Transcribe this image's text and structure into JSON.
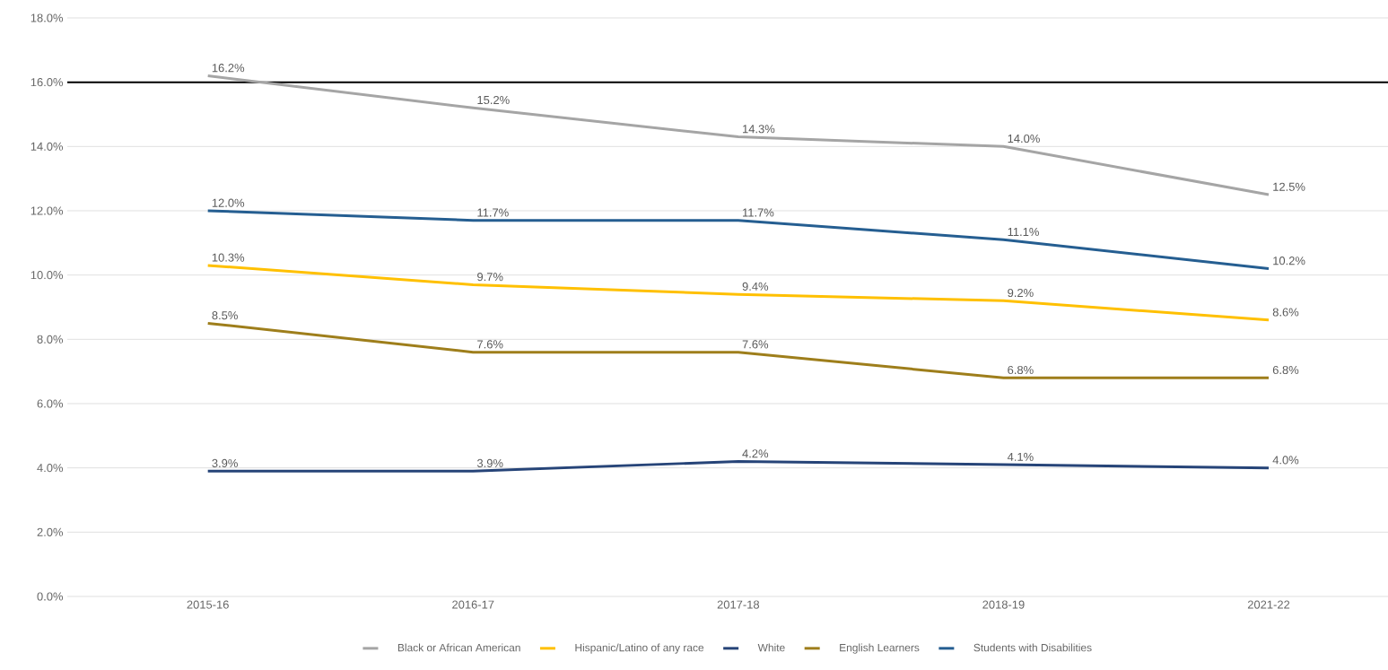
{
  "chart_data": {
    "type": "line",
    "categories": [
      "2015-16",
      "2016-17",
      "2017-18",
      "2018-19",
      "2021-22"
    ],
    "series": [
      {
        "name": "Black or African American",
        "color": "#a5a5a5",
        "values": [
          16.2,
          15.2,
          14.3,
          14.0,
          12.5
        ],
        "value_labels": [
          "16.2%",
          "15.2%",
          "14.3%",
          "14.0%",
          "12.5%"
        ]
      },
      {
        "name": "Hispanic/Latino of any race",
        "color": "#ffc000",
        "values": [
          10.3,
          9.7,
          9.4,
          9.2,
          8.6
        ],
        "value_labels": [
          "10.3%",
          "9.7%",
          "9.4%",
          "9.2%",
          "8.6%"
        ]
      },
      {
        "name": "White",
        "color": "#264478",
        "values": [
          3.9,
          3.9,
          4.2,
          4.1,
          4.0
        ],
        "value_labels": [
          "3.9%",
          "3.9%",
          "4.2%",
          "4.1%",
          "4.0%"
        ]
      },
      {
        "name": "English Learners",
        "color": "#9e7e1b",
        "values": [
          8.5,
          7.6,
          7.6,
          6.8,
          6.8
        ],
        "value_labels": [
          "8.5%",
          "7.6%",
          "7.6%",
          "6.8%",
          "6.8%"
        ]
      },
      {
        "name": "Students with Disabilities",
        "color": "#255e91",
        "values": [
          12.0,
          11.7,
          11.7,
          11.1,
          10.2
        ],
        "value_labels": [
          "12.0%",
          "11.7%",
          "11.7%",
          "11.1%",
          "10.2%"
        ]
      }
    ],
    "ylim": [
      0,
      18
    ],
    "yticks": [
      {
        "value": 0,
        "label": "0.0%"
      },
      {
        "value": 2,
        "label": "2.0%"
      },
      {
        "value": 4,
        "label": "4.0%"
      },
      {
        "value": 6,
        "label": "6.0%"
      },
      {
        "value": 8,
        "label": "8.0%"
      },
      {
        "value": 10,
        "label": "10.0%"
      },
      {
        "value": 12,
        "label": "12.0%"
      },
      {
        "value": 14,
        "label": "14.0%"
      },
      {
        "value": 16,
        "label": "16.0%"
      },
      {
        "value": 18,
        "label": "18.0%"
      }
    ],
    "ref_lines": [
      {
        "axis": "y",
        "value": 16,
        "color": "#000000"
      }
    ],
    "grid": "y",
    "legend": "bottom",
    "marker": "none",
    "line_style": "solid"
  }
}
